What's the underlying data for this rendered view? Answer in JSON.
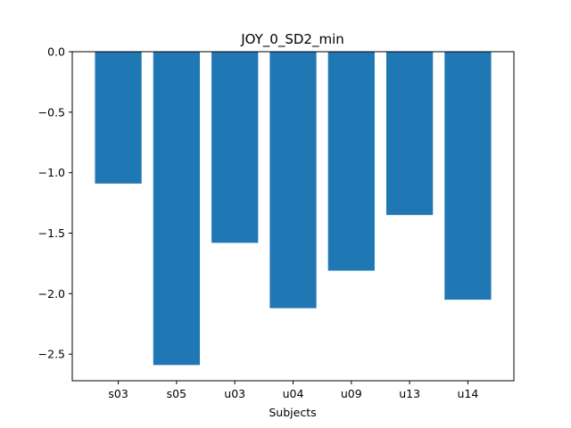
{
  "chart_data": {
    "type": "bar",
    "title": "JOY_0_SD2_min",
    "xlabel": "Subjects",
    "ylabel": "",
    "categories": [
      "s03",
      "s05",
      "u03",
      "u04",
      "u09",
      "u13",
      "u14"
    ],
    "values": [
      -1.09,
      -2.59,
      -1.58,
      -2.12,
      -1.81,
      -1.35,
      -2.05
    ],
    "ylim": [
      -2.72,
      0.0
    ],
    "yticks": [
      0.0,
      -0.5,
      -1.0,
      -1.5,
      -2.0,
      -2.5
    ],
    "ytick_labels": [
      "0.0",
      "−0.5",
      "−1.0",
      "−1.5",
      "−2.0",
      "−2.5"
    ],
    "bar_color": "#1f77b4",
    "grid": false,
    "legend": "none"
  }
}
